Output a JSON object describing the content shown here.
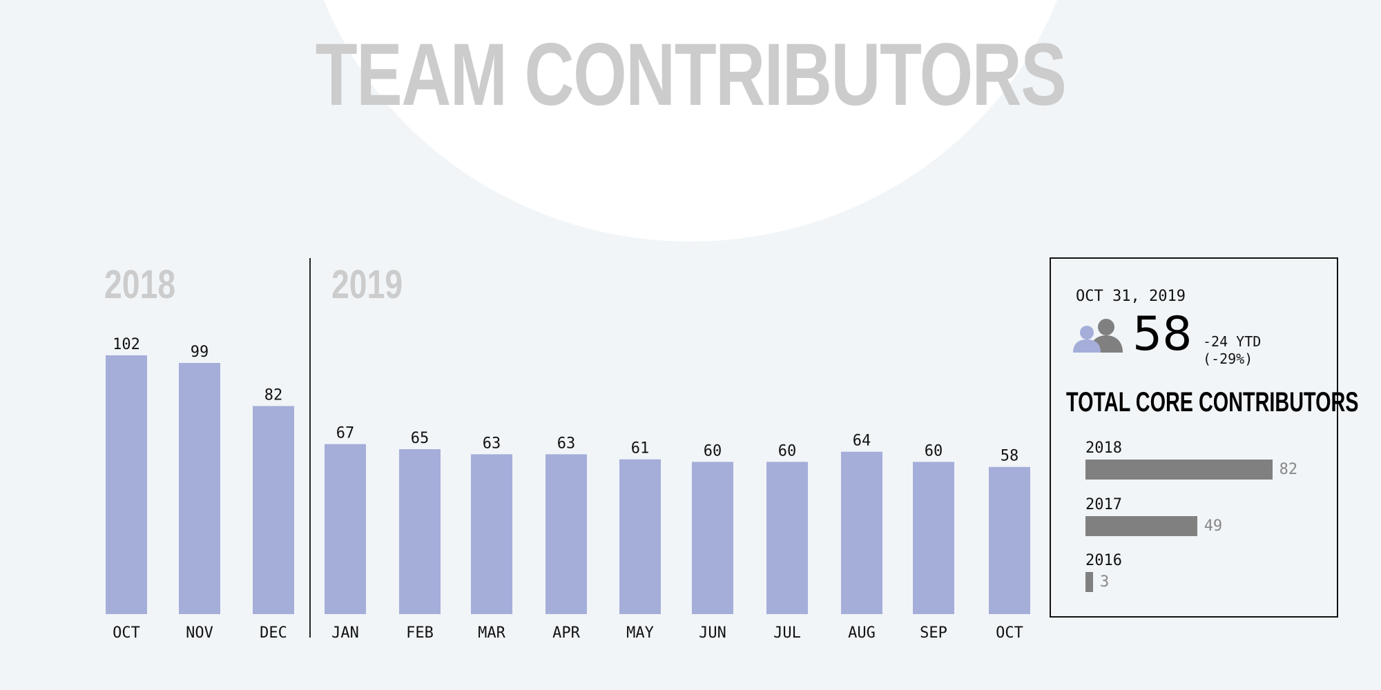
{
  "title": "TEAM CONTRIBUTORS",
  "year_labels": [
    "2018",
    "2019"
  ],
  "chart_data": {
    "type": "bar",
    "categories": [
      "OCT",
      "NOV",
      "DEC",
      "JAN",
      "FEB",
      "MAR",
      "APR",
      "MAY",
      "JUN",
      "JUL",
      "AUG",
      "SEP",
      "OCT"
    ],
    "values": [
      102,
      99,
      82,
      67,
      65,
      63,
      63,
      61,
      60,
      60,
      64,
      60,
      58
    ],
    "groups": [
      {
        "name": "2018",
        "categories": [
          "OCT",
          "NOV",
          "DEC"
        ]
      },
      {
        "name": "2019",
        "categories": [
          "JAN",
          "FEB",
          "MAR",
          "APR",
          "MAY",
          "JUN",
          "JUL",
          "AUG",
          "SEP",
          "OCT"
        ]
      }
    ],
    "data_labels": true,
    "grid": false,
    "color": "#a5aed9"
  },
  "panel": {
    "date": "OCT 31, 2019",
    "icon": "people-icon",
    "value": "58",
    "ytd_change": "-24 YTD",
    "ytd_pct": "(-29%)",
    "title": "TOTAL CORE CONTRIBUTORS",
    "rows": [
      {
        "year": "2018",
        "value": 82
      },
      {
        "year": "2017",
        "value": 49
      },
      {
        "year": "2016",
        "value": 3
      }
    ],
    "bar_color": "#808080"
  }
}
